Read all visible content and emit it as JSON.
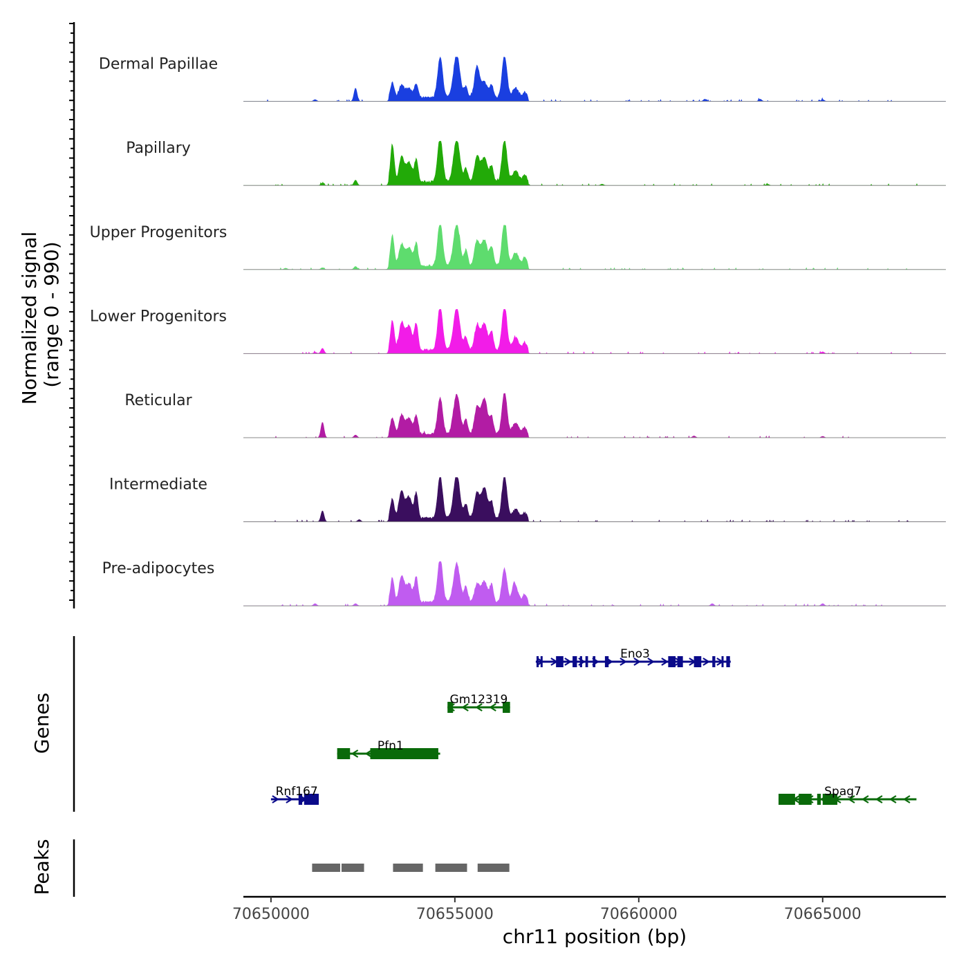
{
  "chart_data": {
    "type": "area",
    "title": "",
    "ylabel_line1": "Normalized signal",
    "ylabel_line2": "(range 0 - 990)",
    "xlabel": "chr11 position (bp)",
    "xlim": [
      70649250,
      70668350
    ],
    "y_range": [
      0,
      990
    ],
    "x_ticks": [
      {
        "value": 70650000,
        "label": "70650000"
      },
      {
        "value": 70655000,
        "label": "70655000"
      },
      {
        "value": 70660000,
        "label": "70660000"
      },
      {
        "value": 70665000,
        "label": "70665000"
      }
    ],
    "tracks": [
      {
        "name": "Dermal Papillae",
        "color": "#1a3fe0",
        "peak_heights": [
          0.35,
          0.28,
          0.22,
          0.3,
          0.92,
          1.0,
          0.25,
          0.7,
          0.35,
          0.28,
          0.95,
          0.22,
          0.12
        ],
        "noise": [
          [
            70652300,
            0.3
          ],
          [
            70651200,
            0.04
          ],
          [
            70661800,
            0.05
          ],
          [
            70663300,
            0.05
          ],
          [
            70665000,
            0.04
          ]
        ]
      },
      {
        "name": "Papillary",
        "color": "#22aa08",
        "peak_heights": [
          0.85,
          0.55,
          0.45,
          0.48,
          1.0,
          0.95,
          0.3,
          0.55,
          0.55,
          0.35,
          0.95,
          0.25,
          0.15
        ],
        "noise": [
          [
            70652300,
            0.12
          ],
          [
            70651400,
            0.05
          ],
          [
            70659000,
            0.03
          ],
          [
            70663500,
            0.03
          ]
        ]
      },
      {
        "name": "Upper Progenitors",
        "color": "#5edc6e",
        "peak_heights": [
          0.7,
          0.48,
          0.42,
          0.5,
          1.0,
          0.95,
          0.35,
          0.55,
          0.58,
          0.42,
          1.0,
          0.3,
          0.2
        ],
        "noise": [
          [
            70652300,
            0.07
          ],
          [
            70650400,
            0.03
          ],
          [
            70651400,
            0.04
          ]
        ]
      },
      {
        "name": "Lower Progenitors",
        "color": "#f21ce8",
        "peak_heights": [
          0.68,
          0.6,
          0.55,
          0.58,
          1.0,
          0.98,
          0.3,
          0.52,
          0.6,
          0.4,
          1.0,
          0.28,
          0.18
        ],
        "noise": [
          [
            70651400,
            0.12
          ],
          [
            70651200,
            0.03
          ],
          [
            70665000,
            0.04
          ]
        ]
      },
      {
        "name": "Reticular",
        "color": "#b21ca4",
        "peak_heights": [
          0.38,
          0.42,
          0.35,
          0.42,
          0.82,
          0.9,
          0.32,
          0.58,
          0.8,
          0.38,
          0.95,
          0.25,
          0.15
        ],
        "noise": [
          [
            70651400,
            0.35
          ],
          [
            70652300,
            0.06
          ],
          [
            70661500,
            0.04
          ],
          [
            70665000,
            0.03
          ]
        ]
      },
      {
        "name": "Intermediate",
        "color": "#3a0e5e",
        "peak_heights": [
          0.45,
          0.58,
          0.48,
          0.55,
          0.95,
          1.0,
          0.3,
          0.55,
          0.7,
          0.35,
          0.95,
          0.2,
          0.12
        ],
        "noise": [
          [
            70651400,
            0.25
          ],
          [
            70652400,
            0.05
          ],
          [
            70653500,
            0.04
          ]
        ]
      },
      {
        "name": "Pre-adipocytes",
        "color": "#c05cf0",
        "peak_heights": [
          0.55,
          0.58,
          0.42,
          0.55,
          1.0,
          0.88,
          0.35,
          0.4,
          0.48,
          0.38,
          0.75,
          0.3,
          0.18
        ],
        "noise": [
          [
            70651200,
            0.05
          ],
          [
            70652300,
            0.05
          ],
          [
            70656600,
            0.2
          ],
          [
            70662000,
            0.05
          ],
          [
            70665000,
            0.05
          ]
        ]
      }
    ],
    "peak_centers": [
      70653300,
      70653550,
      70653750,
      70653950,
      70654600,
      70655050,
      70655300,
      70655600,
      70655800,
      70656000,
      70656350,
      70656650,
      70656900
    ],
    "genes_label": "Genes",
    "genes": [
      {
        "name": "Eno3",
        "start": 70657200,
        "end": 70662500,
        "strand": "+",
        "color": "#0a0a8a",
        "row": 0,
        "exons": [
          [
            70657220,
            70657280
          ],
          [
            70657330,
            70657380
          ],
          [
            70657750,
            70657950
          ],
          [
            70658200,
            70658320
          ],
          [
            70658400,
            70658460
          ],
          [
            70658550,
            70658620
          ],
          [
            70658750,
            70658820
          ],
          [
            70659080,
            70659180
          ],
          [
            70660800,
            70661000
          ],
          [
            70661050,
            70661200
          ],
          [
            70661500,
            70661700
          ],
          [
            70662000,
            70662080
          ],
          [
            70662250,
            70662300
          ],
          [
            70662380,
            70662480
          ]
        ]
      },
      {
        "name": "Gm12319",
        "start": 70654800,
        "end": 70656500,
        "strand": "-",
        "color": "#0a6a0a",
        "row": 1,
        "exons": [
          [
            70654800,
            70654950
          ],
          [
            70656300,
            70656500
          ]
        ]
      },
      {
        "name": "Pfn1",
        "start": 70651800,
        "end": 70654600,
        "strand": "-",
        "color": "#0a6a0a",
        "row": 2,
        "exons": [
          [
            70651800,
            70652150
          ],
          [
            70652700,
            70654550
          ]
        ]
      },
      {
        "name": "Rnf167",
        "start": 70650000,
        "end": 70651300,
        "strand": "+",
        "color": "#0a0a8a",
        "row": 3,
        "exons": [
          [
            70650750,
            70650850
          ],
          [
            70650900,
            70651300
          ]
        ]
      },
      {
        "name": "Spag7",
        "start": 70663800,
        "end": 70667550,
        "strand": "-",
        "color": "#0a6a0a",
        "row": 3,
        "exons": [
          [
            70663800,
            70664250
          ],
          [
            70664350,
            70664700
          ],
          [
            70664850,
            70664950
          ],
          [
            70665000,
            70665400
          ]
        ]
      }
    ],
    "peaks_label": "Peaks",
    "peaks": [
      [
        70651100,
        70651900
      ],
      [
        70651900,
        70652550
      ],
      [
        70653300,
        70654150
      ],
      [
        70654450,
        70655350
      ],
      [
        70655600,
        70656500
      ]
    ]
  }
}
